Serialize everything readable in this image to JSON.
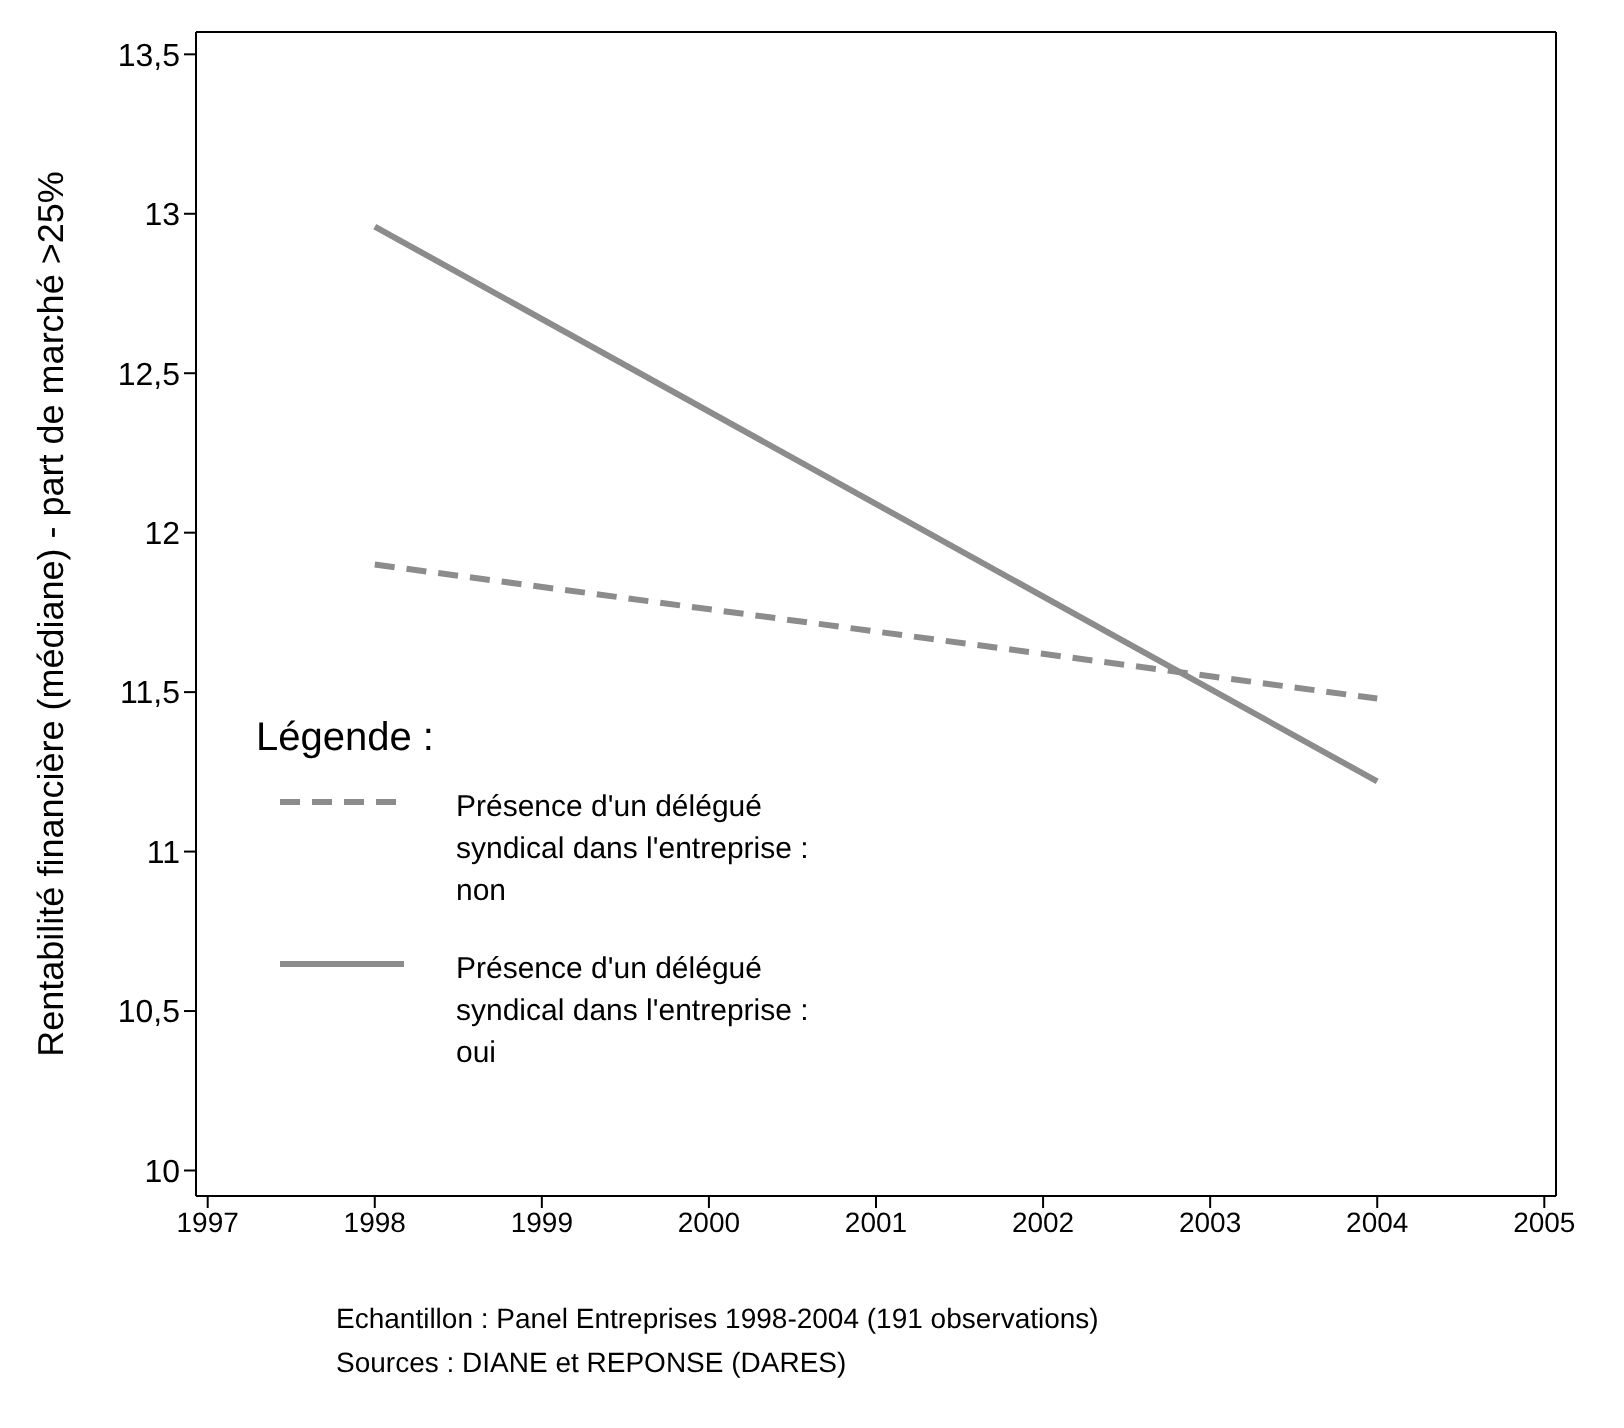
{
  "chart_data": {
    "type": "line",
    "ylabel": "Rentabilité financière (médiane) - part de marché >25%",
    "legend_title": "Légende :",
    "x": [
      1998,
      2004
    ],
    "series": [
      {
        "name": "Présence d'un délégué syndical dans l'entreprise : non",
        "color": "#8c8c8c",
        "values": [
          11.9,
          11.48
        ],
        "line_style": "dashed"
      },
      {
        "name": "Présence d'un délégué syndical dans l'entreprise : oui",
        "color": "#8c8c8c",
        "values": [
          12.96,
          11.22
        ],
        "line_style": "solid"
      }
    ],
    "xlim": [
      1996.93,
      2005.07
    ],
    "xticks": [
      1997,
      1998,
      1999,
      2000,
      2001,
      2002,
      2003,
      2004,
      2005
    ],
    "ylim": [
      9.92,
      13.57
    ],
    "yticks": [
      10,
      {
        "value": 10.5,
        "label": "10,5"
      },
      11,
      {
        "value": 11.5,
        "label": "11,5"
      },
      12,
      {
        "value": 12.5,
        "label": "12,5"
      },
      13,
      {
        "value": 13.5,
        "label": "13,5"
      }
    ],
    "grid": false,
    "legend": "bottom left",
    "marker": "none",
    "annotations": [
      "Echantillon : Panel Entreprises 1998-2004 (191 observations)",
      "Sources : DIANE et REPONSE (DARES)"
    ]
  }
}
